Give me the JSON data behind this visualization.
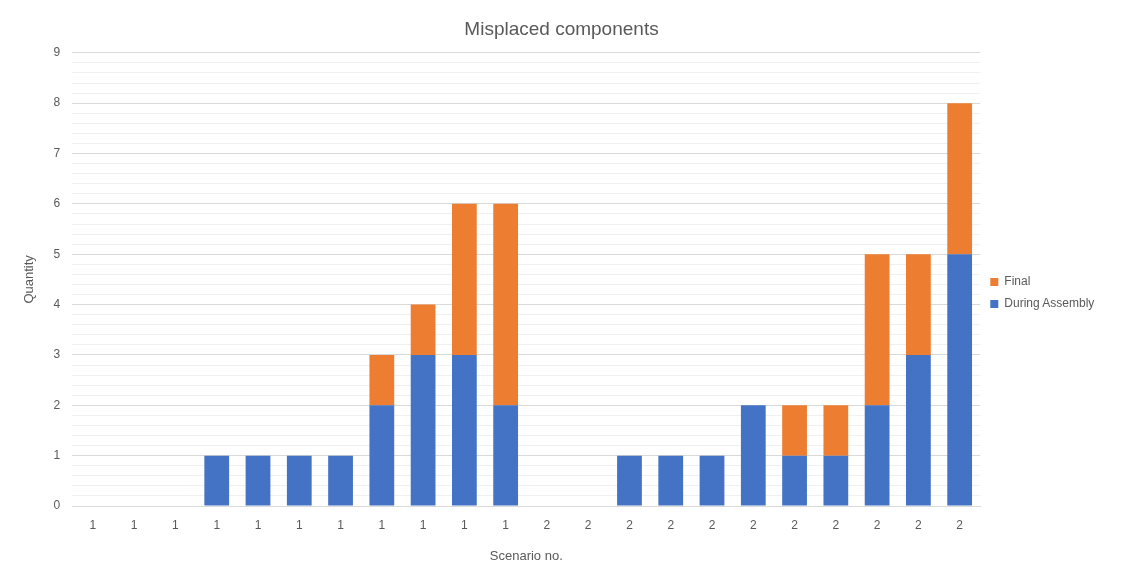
{
  "chart_data": {
    "type": "bar",
    "title": "Misplaced components",
    "xlabel": "Scenario no.",
    "ylabel": "Quantity",
    "categories": [
      "1",
      "1",
      "1",
      "1",
      "1",
      "1",
      "1",
      "1",
      "1",
      "1",
      "1",
      "2",
      "2",
      "2",
      "2",
      "2",
      "2",
      "2",
      "2",
      "2",
      "2",
      "2"
    ],
    "stacked": true,
    "series": [
      {
        "name": "During Assembly",
        "color": "#4472c4",
        "values": [
          0,
          0,
          0,
          1,
          1,
          1,
          1,
          2,
          3,
          3,
          2,
          0,
          0,
          1,
          1,
          1,
          2,
          1,
          1,
          2,
          3,
          5
        ]
      },
      {
        "name": "Final",
        "color": "#ed7d31",
        "values": [
          0,
          0,
          0,
          0,
          0,
          0,
          0,
          1,
          1,
          3,
          4,
          0,
          0,
          0,
          0,
          0,
          0,
          1,
          1,
          3,
          2,
          3
        ]
      }
    ],
    "ylim": [
      0,
      9
    ],
    "yticks": [
      0,
      {
        "value": 0.2,
        "label": null
      },
      {
        "value": 0.4,
        "label": null
      },
      {
        "value": 0.6,
        "label": null
      },
      {
        "value": 0.8,
        "label": null
      },
      1,
      {
        "value": 1.2,
        "label": null
      },
      {
        "value": 1.4,
        "label": null
      },
      {
        "value": 1.6,
        "label": null
      },
      {
        "value": 1.8,
        "label": null
      },
      2,
      {
        "value": 2.2,
        "label": null
      },
      {
        "value": 2.4,
        "label": null
      },
      {
        "value": 2.6,
        "label": null
      },
      {
        "value": 2.8,
        "label": null
      },
      3,
      {
        "value": 3.2,
        "label": null
      },
      {
        "value": 3.4,
        "label": null
      },
      {
        "value": 3.6,
        "label": null
      },
      {
        "value": 3.8,
        "label": null
      },
      4,
      {
        "value": 4.2,
        "label": null
      },
      {
        "value": 4.4,
        "label": null
      },
      {
        "value": 4.6,
        "label": null
      },
      {
        "value": 4.8,
        "label": null
      },
      5,
      {
        "value": 5.2,
        "label": null
      },
      {
        "value": 5.4,
        "label": null
      },
      {
        "value": 5.6,
        "label": null
      },
      {
        "value": 5.8,
        "label": null
      },
      6,
      {
        "value": 6.2,
        "label": null
      },
      {
        "value": 6.4,
        "label": null
      },
      {
        "value": 6.6,
        "label": null
      },
      {
        "value": 6.8,
        "label": null
      },
      7,
      {
        "value": 7.2,
        "label": null
      },
      {
        "value": 7.4,
        "label": null
      },
      {
        "value": 7.6,
        "label": null
      },
      {
        "value": 7.8,
        "label": null
      },
      8,
      {
        "value": 8.2,
        "label": null
      },
      {
        "value": 8.4,
        "label": null
      },
      {
        "value": 8.6,
        "label": null
      },
      {
        "value": 8.8,
        "label": null
      },
      9
    ],
    "grid": "y",
    "legend": "right"
  }
}
